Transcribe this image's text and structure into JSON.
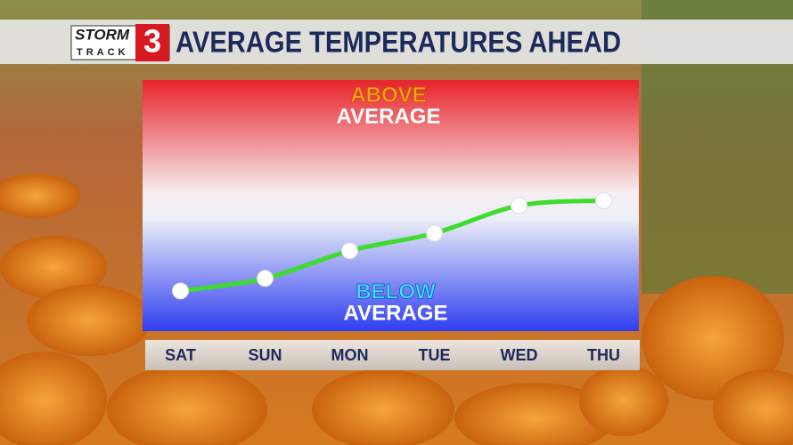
{
  "chart_data": {
    "type": "line",
    "title": "AVERAGE TEMPERATURES AHEAD",
    "logo": {
      "top": "STORM",
      "bottom": "TRACK",
      "number": "3"
    },
    "annotations": [
      "ABOVE",
      "AVERAGE",
      "BELOW",
      "AVERAGE"
    ],
    "categories": [
      "SAT",
      "SUN",
      "MON",
      "TUE",
      "WED",
      "THU"
    ],
    "values": [
      16,
      21,
      32,
      39,
      50,
      52
    ],
    "color": "#3ddc2e",
    "ylim": [
      0,
      100
    ]
  }
}
